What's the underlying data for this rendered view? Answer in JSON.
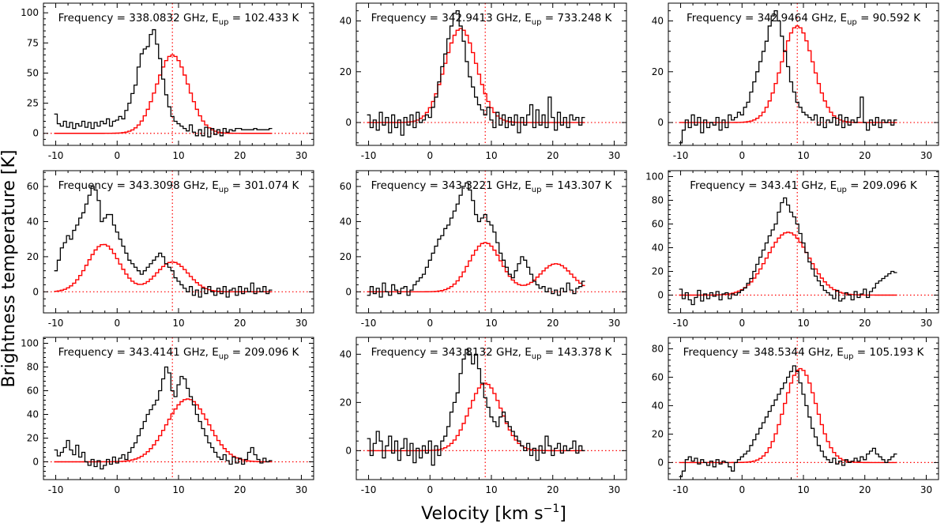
{
  "figure": {
    "xlabel": "Velocity [km s",
    "xlabel_sup": "−1",
    "xlabel_end": "]",
    "ylabel": "Brightness temperature [K]"
  },
  "chart_data": [
    {
      "type": "line",
      "title_prefix": "Frequency = 338.0832 GHz, E",
      "title_sub": "up",
      "title_suffix": " = 102.433 K",
      "xlim": [
        -12,
        32
      ],
      "ylim": [
        -10,
        108
      ],
      "xticks": [
        -10,
        0,
        10,
        20,
        30
      ],
      "yticks": [
        0,
        25,
        50,
        75,
        100
      ],
      "vline": 9.0,
      "hline": 0,
      "series": [
        {
          "role": "observed",
          "color": "#000000",
          "x_start": -10,
          "x_step": 0.5,
          "values": [
            16,
            8,
            6,
            10,
            5,
            9,
            4,
            8,
            6,
            10,
            5,
            9,
            4,
            9,
            6,
            10,
            8,
            12,
            6,
            10,
            11,
            14,
            12,
            19,
            25,
            33,
            40,
            55,
            66,
            70,
            72,
            82,
            86,
            74,
            62,
            45,
            32,
            22,
            14,
            10,
            8,
            6,
            4,
            2,
            7,
            1,
            -2,
            3,
            -2,
            5,
            -3,
            4,
            -1,
            3,
            -2,
            4,
            1,
            3,
            2,
            4,
            4,
            3,
            3,
            3,
            3,
            4,
            3,
            3,
            3,
            3,
            4
          ]
        },
        {
          "role": "model",
          "color": "#ff0000",
          "gaussians": [
            {
              "amp": 65,
              "center": 9.0,
              "sigma": 2.6
            }
          ]
        }
      ]
    },
    {
      "type": "line",
      "title_prefix": "Frequency = 342.9413 GHz, E",
      "title_sub": "up",
      "title_suffix": " = 733.248 K",
      "xlim": [
        -12,
        32
      ],
      "ylim": [
        -9,
        47
      ],
      "xticks": [
        -10,
        0,
        10,
        20,
        30
      ],
      "yticks": [
        0,
        20,
        40
      ],
      "vline": 9.0,
      "hline": 0,
      "series": [
        {
          "role": "observed",
          "color": "#000000",
          "x_start": -10,
          "x_step": 0.5,
          "values": [
            3,
            -2,
            1,
            -3,
            4,
            -1,
            2,
            -4,
            3,
            -2,
            1,
            -5,
            2,
            -1,
            3,
            -2,
            4,
            0,
            1,
            3,
            2,
            6,
            10,
            16,
            22,
            27,
            33,
            38,
            43,
            44,
            38,
            32,
            24,
            18,
            14,
            10,
            7,
            5,
            3,
            6,
            1,
            -2,
            4,
            -1,
            3,
            -2,
            2,
            -1,
            3,
            -4,
            2,
            -1,
            3,
            7,
            -2,
            5,
            -1,
            3,
            -2,
            10,
            2,
            -3,
            4,
            -1,
            2,
            -2,
            3,
            1,
            2,
            -1,
            2
          ]
        },
        {
          "role": "model",
          "color": "#ff0000",
          "gaussians": [
            {
              "amp": 37,
              "center": 5.0,
              "sigma": 2.6
            }
          ]
        }
      ]
    },
    {
      "type": "line",
      "title_prefix": "Frequency = 342.9464 GHz, E",
      "title_sub": "up",
      "title_suffix": " = 90.592 K",
      "xlim": [
        -12,
        32
      ],
      "ylim": [
        -9,
        47
      ],
      "xticks": [
        -10,
        0,
        10,
        20,
        30
      ],
      "yticks": [
        0,
        20,
        40
      ],
      "vline": 9.0,
      "hline": 0,
      "series": [
        {
          "role": "observed",
          "color": "#000000",
          "x_start": -10,
          "x_step": 0.5,
          "values": [
            -8,
            -3,
            1,
            -2,
            3,
            -1,
            2,
            -4,
            1,
            -2,
            0,
            -1,
            2,
            -3,
            1,
            -2,
            3,
            1,
            2,
            4,
            3,
            6,
            8,
            12,
            16,
            20,
            24,
            28,
            32,
            38,
            42,
            44,
            40,
            34,
            28,
            22,
            16,
            12,
            8,
            6,
            4,
            3,
            2,
            1,
            3,
            -1,
            2,
            -2,
            1,
            0,
            2,
            -1,
            3,
            -2,
            2,
            -1,
            1,
            0,
            2,
            10,
            0,
            -3,
            1,
            -1,
            2,
            -2,
            1,
            0,
            1,
            -1,
            1
          ]
        },
        {
          "role": "model",
          "color": "#ff0000",
          "gaussians": [
            {
              "amp": 38,
              "center": 9.0,
              "sigma": 2.6
            }
          ]
        }
      ]
    },
    {
      "type": "line",
      "title_prefix": "Frequency = 343.3098 GHz, E",
      "title_sub": "up",
      "title_suffix": " = 301.074 K",
      "xlim": [
        -12,
        32
      ],
      "ylim": [
        -12,
        69
      ],
      "xticks": [
        -10,
        0,
        10,
        20,
        30
      ],
      "yticks": [
        0,
        20,
        40,
        60
      ],
      "vline": 9.0,
      "hline": 0,
      "series": [
        {
          "role": "observed",
          "color": "#000000",
          "x_start": -10,
          "x_step": 0.5,
          "values": [
            12,
            18,
            25,
            28,
            32,
            30,
            35,
            38,
            42,
            45,
            50,
            55,
            60,
            58,
            52,
            40,
            42,
            44,
            44,
            38,
            34,
            30,
            26,
            22,
            18,
            16,
            14,
            12,
            10,
            12,
            14,
            16,
            18,
            20,
            22,
            20,
            16,
            14,
            12,
            8,
            6,
            4,
            2,
            0,
            3,
            -2,
            1,
            -3,
            2,
            -1,
            3,
            0,
            -2,
            2,
            -1,
            3,
            -3,
            1,
            2,
            -2,
            3,
            -1,
            2,
            0,
            5,
            -1,
            2,
            0,
            3,
            -1,
            1
          ]
        },
        {
          "role": "model",
          "color": "#ff0000",
          "gaussians": [
            {
              "amp": 27,
              "center": -2.2,
              "sigma": 2.6
            },
            {
              "amp": 17,
              "center": 9.0,
              "sigma": 2.6
            }
          ]
        }
      ]
    },
    {
      "type": "line",
      "title_prefix": "Frequency = 343.3221 GHz, E",
      "title_sub": "up",
      "title_suffix": " = 143.307 K",
      "xlim": [
        -12,
        32
      ],
      "ylim": [
        -12,
        69
      ],
      "xticks": [
        -10,
        0,
        10,
        20,
        30
      ],
      "yticks": [
        0,
        20,
        40,
        60
      ],
      "vline": 9.0,
      "hline": 0,
      "series": [
        {
          "role": "observed",
          "color": "#000000",
          "x_start": -10,
          "x_step": 0.5,
          "values": [
            -2,
            3,
            -1,
            2,
            -3,
            5,
            0,
            -2,
            4,
            1,
            -1,
            2,
            3,
            -2,
            1,
            4,
            6,
            8,
            10,
            14,
            18,
            22,
            26,
            30,
            32,
            36,
            38,
            42,
            46,
            50,
            55,
            60,
            62,
            58,
            52,
            44,
            40,
            42,
            44,
            40,
            38,
            34,
            28,
            22,
            18,
            14,
            10,
            8,
            12,
            16,
            20,
            18,
            14,
            10,
            6,
            4,
            2,
            3,
            0,
            2,
            -1,
            1,
            -2,
            2,
            0,
            5,
            1,
            -1,
            2,
            3,
            6
          ]
        },
        {
          "role": "model",
          "color": "#ff0000",
          "gaussians": [
            {
              "amp": 28,
              "center": 9.0,
              "sigma": 2.6
            },
            {
              "amp": 16,
              "center": 20.5,
              "sigma": 2.6
            }
          ]
        }
      ]
    },
    {
      "type": "line",
      "title_prefix": "Frequency = 343.41 GHz, E",
      "title_sub": "up",
      "title_suffix": " = 209.096 K",
      "xlim": [
        -12,
        32
      ],
      "ylim": [
        -15,
        105
      ],
      "xticks": [
        -10,
        0,
        10,
        20,
        30
      ],
      "yticks": [
        0,
        20,
        40,
        60,
        80,
        100
      ],
      "vline": 9.0,
      "hline": 0,
      "series": [
        {
          "role": "observed",
          "color": "#000000",
          "x_start": -10,
          "x_step": 0.5,
          "values": [
            5,
            -3,
            2,
            -4,
            -8,
            -2,
            4,
            -5,
            1,
            -3,
            2,
            -1,
            3,
            -4,
            1,
            2,
            -3,
            1,
            0,
            2,
            4,
            6,
            10,
            14,
            20,
            26,
            32,
            38,
            44,
            50,
            55,
            60,
            70,
            78,
            82,
            76,
            70,
            66,
            60,
            52,
            44,
            36,
            28,
            22,
            16,
            12,
            8,
            4,
            2,
            0,
            -3,
            4,
            -5,
            -3,
            2,
            0,
            -4,
            3,
            -2,
            1,
            5,
            -2,
            3,
            6,
            10,
            12,
            14,
            16,
            18,
            20,
            19
          ]
        },
        {
          "role": "model",
          "color": "#ff0000",
          "gaussians": [
            {
              "amp": 53,
              "center": 7.5,
              "sigma": 3.4
            }
          ]
        }
      ]
    },
    {
      "type": "line",
      "title_prefix": "Frequency = 343.4141 GHz, E",
      "title_sub": "up",
      "title_suffix": " = 209.096 K",
      "xlim": [
        -12,
        32
      ],
      "ylim": [
        -15,
        105
      ],
      "xticks": [
        -10,
        0,
        10,
        20,
        30
      ],
      "yticks": [
        0,
        20,
        40,
        60,
        80,
        100
      ],
      "vline": 9.0,
      "hline": 0,
      "series": [
        {
          "role": "observed",
          "color": "#000000",
          "x_start": -10,
          "x_step": 0.5,
          "values": [
            10,
            5,
            8,
            12,
            18,
            10,
            6,
            14,
            4,
            8,
            0,
            -3,
            2,
            -4,
            1,
            -6,
            -3,
            2,
            -2,
            4,
            -1,
            3,
            6,
            2,
            8,
            12,
            16,
            22,
            28,
            34,
            40,
            44,
            48,
            52,
            60,
            70,
            80,
            75,
            60,
            55,
            65,
            72,
            70,
            62,
            55,
            48,
            40,
            34,
            28,
            22,
            16,
            12,
            8,
            4,
            2,
            6,
            1,
            -2,
            4,
            -1,
            3,
            -2,
            2,
            8,
            12,
            6,
            2,
            -1,
            3,
            0,
            1
          ]
        },
        {
          "role": "model",
          "color": "#ff0000",
          "gaussians": [
            {
              "amp": 53,
              "center": 11.5,
              "sigma": 3.4
            }
          ]
        }
      ]
    },
    {
      "type": "line",
      "title_prefix": "Frequency = 343.8132 GHz, E",
      "title_sub": "up",
      "title_suffix": " = 143.378 K",
      "xlim": [
        -12,
        32
      ],
      "ylim": [
        -12,
        47
      ],
      "xticks": [
        -10,
        0,
        10,
        20,
        30
      ],
      "yticks": [
        0,
        20,
        40
      ],
      "vline": 9.0,
      "hline": 0,
      "series": [
        {
          "role": "observed",
          "color": "#000000",
          "x_start": -10,
          "x_step": 0.5,
          "values": [
            5,
            -2,
            3,
            8,
            4,
            -3,
            2,
            6,
            -1,
            4,
            -4,
            1,
            5,
            -2,
            3,
            -5,
            1,
            -3,
            2,
            -1,
            4,
            -6,
            2,
            -2,
            4,
            6,
            10,
            16,
            20,
            24,
            32,
            38,
            42,
            40,
            36,
            40,
            34,
            28,
            22,
            18,
            14,
            12,
            10,
            14,
            16,
            12,
            10,
            8,
            6,
            4,
            2,
            0,
            3,
            -2,
            1,
            -4,
            2,
            -1,
            6,
            2,
            -2,
            1,
            3,
            -1,
            2,
            0,
            1,
            4,
            -1,
            2,
            0
          ]
        },
        {
          "role": "model",
          "color": "#ff0000",
          "gaussians": [
            {
              "amp": 28,
              "center": 9.0,
              "sigma": 2.6
            }
          ]
        }
      ]
    },
    {
      "type": "line",
      "title_prefix": "Frequency = 348.5344 GHz, E",
      "title_sub": "up",
      "title_suffix": " = 105.193 K",
      "xlim": [
        -12,
        32
      ],
      "ylim": [
        -12,
        88
      ],
      "xticks": [
        -10,
        0,
        10,
        20,
        30
      ],
      "yticks": [
        0,
        20,
        40,
        60,
        80
      ],
      "vline": 9.0,
      "hline": 0,
      "series": [
        {
          "role": "observed",
          "color": "#000000",
          "x_start": -10,
          "x_step": 0.5,
          "values": [
            -10,
            -6,
            2,
            4,
            1,
            3,
            -1,
            2,
            0,
            -2,
            1,
            -3,
            2,
            -1,
            1,
            0,
            -3,
            -6,
            0,
            2,
            4,
            6,
            8,
            12,
            16,
            20,
            24,
            28,
            32,
            36,
            40,
            44,
            48,
            52,
            56,
            60,
            64,
            68,
            64,
            56,
            48,
            40,
            32,
            24,
            18,
            12,
            8,
            4,
            2,
            0,
            3,
            -1,
            1,
            -2,
            2,
            0,
            1,
            3,
            1,
            4,
            2,
            6,
            8,
            10,
            6,
            4,
            2,
            0,
            2,
            4,
            6
          ]
        },
        {
          "role": "model",
          "color": "#ff0000",
          "gaussians": [
            {
              "amp": 66,
              "center": 9.5,
              "sigma": 2.6
            }
          ]
        }
      ]
    }
  ]
}
